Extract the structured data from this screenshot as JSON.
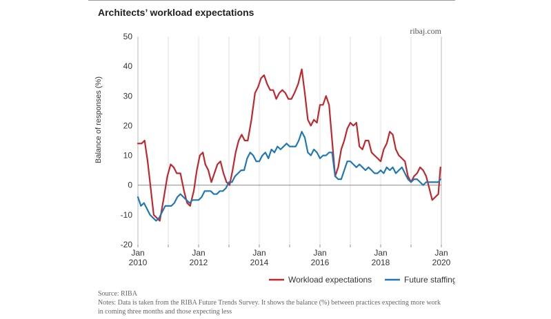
{
  "header": {
    "title": "Architects’ workload expectations",
    "source_tag": "ribaj.com"
  },
  "footer": {
    "source": "Source: RIBA",
    "notes": "Notes: Data is taken from the RIBA Future Trends Survey. It shows the balance (%) between practices expecting more work in coming three months and those expecting less"
  },
  "colors": {
    "workload": "#c0272d",
    "staffing": "#1f77b4"
  },
  "chart_data": {
    "type": "line",
    "title": "Architects’ workload expectations",
    "xlabel": "",
    "ylabel": "Balance of responses (%)",
    "xlim": [
      2010.0,
      2020.0
    ],
    "ylim": [
      -20,
      50
    ],
    "yticks": [
      -20,
      -10,
      0,
      10,
      20,
      30,
      40,
      50
    ],
    "xticks": [
      {
        "value": 2010,
        "line1": "Jan",
        "line2": "2010"
      },
      {
        "value": 2011,
        "line1": "",
        "line2": ""
      },
      {
        "value": 2012,
        "line1": "Jan",
        "line2": "2012"
      },
      {
        "value": 2013,
        "line1": "",
        "line2": ""
      },
      {
        "value": 2014,
        "line1": "Jan",
        "line2": "2014"
      },
      {
        "value": 2015,
        "line1": "",
        "line2": ""
      },
      {
        "value": 2016,
        "line1": "Jan",
        "line2": "2016"
      },
      {
        "value": 2017,
        "line1": "",
        "line2": ""
      },
      {
        "value": 2018,
        "line1": "Jan",
        "line2": "2018"
      },
      {
        "value": 2019,
        "line1": "",
        "line2": ""
      },
      {
        "value": 2020,
        "line1": "Jan",
        "line2": "2020"
      }
    ],
    "grid": {
      "vertical": true,
      "horizontal": false,
      "zero_line": true
    },
    "legend": "bottom-right",
    "series": [
      {
        "name": "Workload expectations",
        "color": "#c0272d",
        "points": [
          [
            2010.0,
            14
          ],
          [
            2010.12,
            14
          ],
          [
            2010.22,
            15
          ],
          [
            2010.32,
            8
          ],
          [
            2010.42,
            -1
          ],
          [
            2010.52,
            -10
          ],
          [
            2010.62,
            -11
          ],
          [
            2010.72,
            -12
          ],
          [
            2010.84,
            -5
          ],
          [
            2010.97,
            3
          ],
          [
            2011.08,
            7
          ],
          [
            2011.18,
            6
          ],
          [
            2011.28,
            4
          ],
          [
            2011.4,
            4
          ],
          [
            2011.52,
            -2
          ],
          [
            2011.62,
            -6
          ],
          [
            2011.72,
            -7
          ],
          [
            2011.84,
            -2
          ],
          [
            2011.94,
            5
          ],
          [
            2012.04,
            10
          ],
          [
            2012.14,
            11
          ],
          [
            2012.22,
            7
          ],
          [
            2012.32,
            5
          ],
          [
            2012.42,
            1
          ],
          [
            2012.52,
            4
          ],
          [
            2012.62,
            7
          ],
          [
            2012.72,
            8
          ],
          [
            2012.82,
            4
          ],
          [
            2012.92,
            1
          ],
          [
            2013.02,
            0
          ],
          [
            2013.12,
            5
          ],
          [
            2013.22,
            11
          ],
          [
            2013.32,
            15
          ],
          [
            2013.42,
            17
          ],
          [
            2013.52,
            15
          ],
          [
            2013.62,
            15
          ],
          [
            2013.74,
            22
          ],
          [
            2013.86,
            31
          ],
          [
            2013.96,
            33
          ],
          [
            2014.06,
            36
          ],
          [
            2014.16,
            37
          ],
          [
            2014.26,
            34
          ],
          [
            2014.36,
            32
          ],
          [
            2014.46,
            32
          ],
          [
            2014.56,
            29
          ],
          [
            2014.66,
            31
          ],
          [
            2014.76,
            32
          ],
          [
            2014.86,
            31
          ],
          [
            2014.96,
            29
          ],
          [
            2015.06,
            29
          ],
          [
            2015.16,
            31
          ],
          [
            2015.28,
            34
          ],
          [
            2015.4,
            39
          ],
          [
            2015.5,
            31
          ],
          [
            2015.6,
            22
          ],
          [
            2015.7,
            20
          ],
          [
            2015.8,
            22
          ],
          [
            2015.9,
            21
          ],
          [
            2016.0,
            27
          ],
          [
            2016.1,
            27
          ],
          [
            2016.2,
            30
          ],
          [
            2016.3,
            27
          ],
          [
            2016.4,
            15
          ],
          [
            2016.5,
            3
          ],
          [
            2016.6,
            6
          ],
          [
            2016.7,
            12
          ],
          [
            2016.8,
            15
          ],
          [
            2016.9,
            19
          ],
          [
            2017.0,
            21
          ],
          [
            2017.1,
            20
          ],
          [
            2017.2,
            21
          ],
          [
            2017.3,
            13
          ],
          [
            2017.4,
            12
          ],
          [
            2017.5,
            15
          ],
          [
            2017.6,
            15
          ],
          [
            2017.7,
            11
          ],
          [
            2017.8,
            10
          ],
          [
            2017.9,
            9
          ],
          [
            2018.0,
            8
          ],
          [
            2018.1,
            12
          ],
          [
            2018.2,
            14
          ],
          [
            2018.3,
            18
          ],
          [
            2018.4,
            17
          ],
          [
            2018.5,
            12
          ],
          [
            2018.6,
            10
          ],
          [
            2018.7,
            9
          ],
          [
            2018.8,
            8
          ],
          [
            2018.9,
            3
          ],
          [
            2019.0,
            1
          ],
          [
            2019.1,
            3
          ],
          [
            2019.2,
            4
          ],
          [
            2019.3,
            6
          ],
          [
            2019.4,
            5
          ],
          [
            2019.5,
            3
          ],
          [
            2019.6,
            -1
          ],
          [
            2019.7,
            -5
          ],
          [
            2019.8,
            -4
          ],
          [
            2019.9,
            -3
          ],
          [
            2019.97,
            6
          ]
        ]
      },
      {
        "name": "Future staffing",
        "color": "#1f77b4",
        "points": [
          [
            2010.0,
            -4
          ],
          [
            2010.1,
            -7
          ],
          [
            2010.2,
            -6
          ],
          [
            2010.3,
            -8
          ],
          [
            2010.4,
            -10
          ],
          [
            2010.5,
            -11
          ],
          [
            2010.6,
            -12
          ],
          [
            2010.7,
            -11
          ],
          [
            2010.8,
            -9
          ],
          [
            2010.9,
            -7
          ],
          [
            2011.0,
            -7
          ],
          [
            2011.1,
            -7
          ],
          [
            2011.2,
            -6
          ],
          [
            2011.3,
            -4
          ],
          [
            2011.4,
            -3
          ],
          [
            2011.5,
            -4
          ],
          [
            2011.6,
            -5
          ],
          [
            2011.7,
            -6
          ],
          [
            2011.8,
            -5
          ],
          [
            2011.9,
            -5
          ],
          [
            2012.0,
            -5
          ],
          [
            2012.1,
            -4
          ],
          [
            2012.2,
            -2
          ],
          [
            2012.3,
            -2
          ],
          [
            2012.4,
            -2
          ],
          [
            2012.5,
            -3
          ],
          [
            2012.6,
            -3
          ],
          [
            2012.7,
            -2
          ],
          [
            2012.8,
            -2
          ],
          [
            2012.9,
            -1
          ],
          [
            2013.0,
            1
          ],
          [
            2013.1,
            1
          ],
          [
            2013.2,
            3
          ],
          [
            2013.3,
            4
          ],
          [
            2013.4,
            5
          ],
          [
            2013.5,
            5
          ],
          [
            2013.6,
            9
          ],
          [
            2013.7,
            11
          ],
          [
            2013.8,
            10
          ],
          [
            2013.9,
            8
          ],
          [
            2014.0,
            8
          ],
          [
            2014.1,
            10
          ],
          [
            2014.2,
            11
          ],
          [
            2014.3,
            9
          ],
          [
            2014.4,
            12
          ],
          [
            2014.5,
            11
          ],
          [
            2014.6,
            13
          ],
          [
            2014.7,
            12
          ],
          [
            2014.8,
            13
          ],
          [
            2014.9,
            14
          ],
          [
            2015.0,
            13
          ],
          [
            2015.1,
            13
          ],
          [
            2015.2,
            13
          ],
          [
            2015.3,
            15
          ],
          [
            2015.4,
            18
          ],
          [
            2015.5,
            16
          ],
          [
            2015.6,
            11
          ],
          [
            2015.7,
            10
          ],
          [
            2015.8,
            12
          ],
          [
            2015.9,
            11
          ],
          [
            2016.0,
            9
          ],
          [
            2016.1,
            10
          ],
          [
            2016.2,
            10
          ],
          [
            2016.3,
            11
          ],
          [
            2016.4,
            11
          ],
          [
            2016.5,
            3
          ],
          [
            2016.6,
            2
          ],
          [
            2016.7,
            2
          ],
          [
            2016.8,
            5
          ],
          [
            2016.9,
            8
          ],
          [
            2017.0,
            8
          ],
          [
            2017.1,
            7
          ],
          [
            2017.2,
            6
          ],
          [
            2017.3,
            7
          ],
          [
            2017.4,
            6
          ],
          [
            2017.5,
            5
          ],
          [
            2017.6,
            6
          ],
          [
            2017.7,
            5
          ],
          [
            2017.8,
            4
          ],
          [
            2017.9,
            4
          ],
          [
            2018.0,
            5
          ],
          [
            2018.1,
            4
          ],
          [
            2018.2,
            6
          ],
          [
            2018.3,
            5
          ],
          [
            2018.4,
            6
          ],
          [
            2018.5,
            4
          ],
          [
            2018.6,
            5
          ],
          [
            2018.7,
            6
          ],
          [
            2018.8,
            4
          ],
          [
            2018.9,
            2
          ],
          [
            2019.0,
            1
          ],
          [
            2019.1,
            2
          ],
          [
            2019.2,
            2
          ],
          [
            2019.3,
            1
          ],
          [
            2019.4,
            0
          ],
          [
            2019.5,
            1
          ],
          [
            2019.6,
            1
          ],
          [
            2019.7,
            1
          ],
          [
            2019.8,
            1
          ],
          [
            2019.9,
            1
          ],
          [
            2019.97,
            2
          ]
        ]
      }
    ]
  }
}
